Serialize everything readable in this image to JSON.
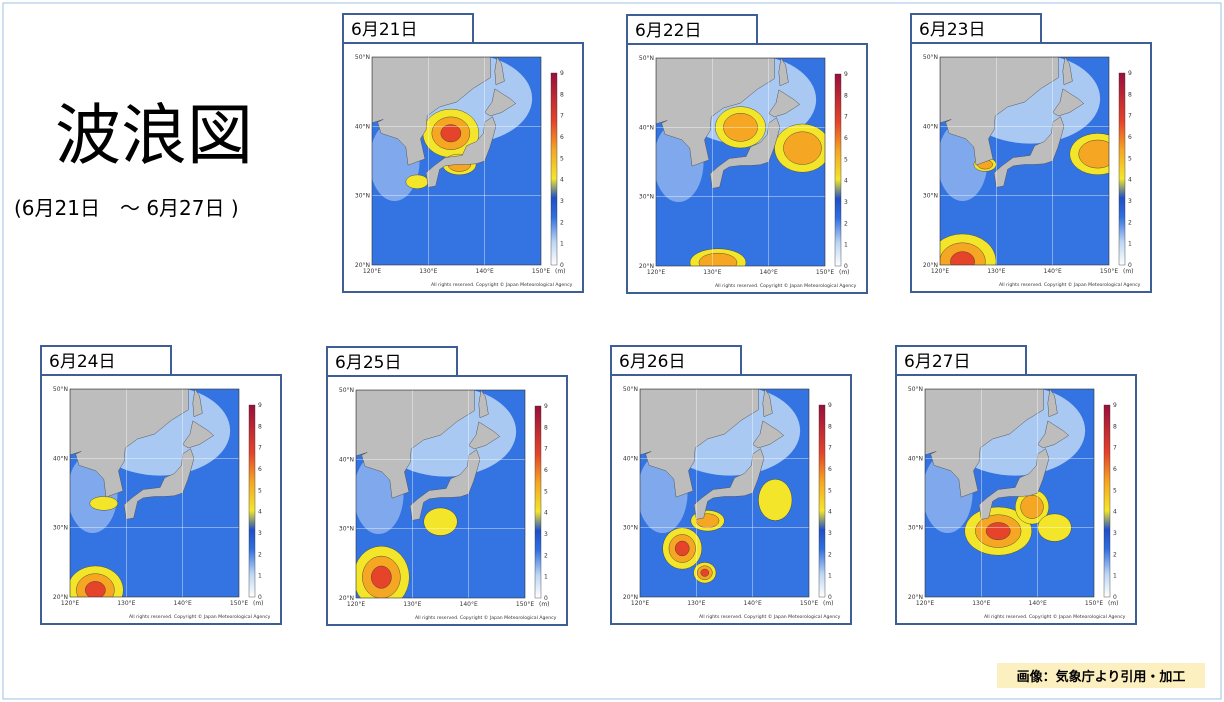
{
  "title": "波浪図",
  "subtitle": "(6月21日　～ 6月27日 )",
  "panels": [
    "6月21日",
    "6月22日",
    "6月23日",
    "6月24日",
    "6月25日",
    "6月26日",
    "6月27日"
  ],
  "map": {
    "lat_labels": [
      "50°N",
      "40°N",
      "30°N",
      "20°N"
    ],
    "lon_labels": [
      "120°E",
      "130°E",
      "140°E",
      "150°E"
    ],
    "colorbar_ticks": [
      0,
      1,
      2,
      3,
      4,
      5,
      6,
      7,
      8,
      9
    ],
    "colorbar_unit": "(m)",
    "copyright": "All rights reserved. Copyright © Japan Meteorological Agency"
  },
  "credit": "画像：気象庁より引用・加工"
}
